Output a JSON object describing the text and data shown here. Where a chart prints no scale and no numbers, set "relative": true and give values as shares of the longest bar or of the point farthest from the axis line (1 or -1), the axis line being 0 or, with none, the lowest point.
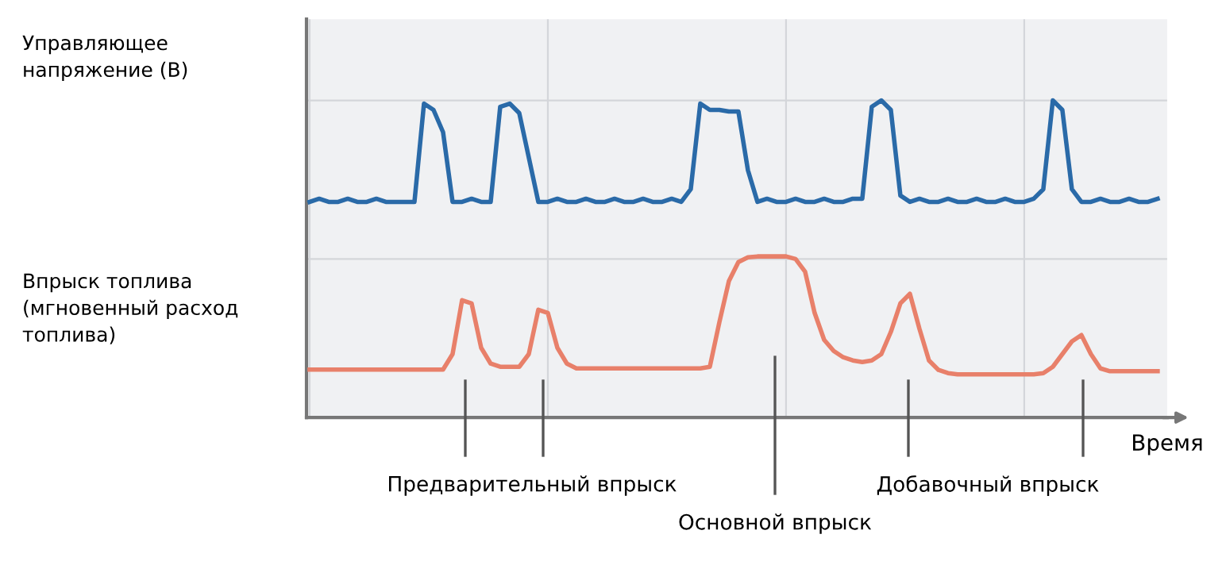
{
  "chart_data": {
    "type": "line",
    "relative": true,
    "grid": true,
    "tick_labels": false,
    "legend": false,
    "marker": "none",
    "line_style": "solid",
    "xlabel": "Время",
    "categories": [
      null,
      null,
      null,
      null,
      null,
      null,
      null,
      null,
      null,
      null,
      null,
      null,
      null,
      null,
      null,
      null,
      null,
      null,
      null,
      null,
      null,
      null,
      null,
      null,
      null,
      null,
      null,
      null,
      null,
      null,
      null,
      null,
      null,
      null,
      null,
      null,
      null,
      null,
      null,
      null,
      null,
      null,
      null,
      null,
      null,
      null,
      null,
      null,
      null,
      null,
      null,
      null,
      null,
      null,
      null,
      null,
      null,
      null,
      null,
      null,
      null,
      null,
      null,
      null,
      null,
      null,
      null,
      null,
      null,
      null,
      null,
      null,
      null,
      null,
      null,
      null,
      null,
      null,
      null,
      null,
      null,
      null,
      null,
      null,
      null,
      null,
      null,
      null,
      null,
      null
    ],
    "series": [
      {
        "color": "#2a6aa8",
        "values": [
          0.68,
          0.69,
          0.68,
          0.68,
          0.69,
          0.68,
          0.68,
          0.69,
          0.68,
          0.68,
          0.68,
          0.68,
          0.99,
          0.97,
          0.9,
          0.68,
          0.68,
          0.69,
          0.68,
          0.68,
          0.98,
          0.99,
          0.96,
          0.82,
          0.68,
          0.68,
          0.69,
          0.68,
          0.68,
          0.69,
          0.68,
          0.68,
          0.69,
          0.68,
          0.68,
          0.69,
          0.68,
          0.68,
          0.69,
          0.68,
          0.72,
          0.99,
          0.97,
          0.97,
          0.965,
          0.965,
          0.78,
          0.68,
          0.69,
          0.68,
          0.68,
          0.69,
          0.68,
          0.68,
          0.69,
          0.68,
          0.68,
          0.69,
          0.69,
          0.98,
          1.0,
          0.97,
          0.7,
          0.68,
          0.69,
          0.68,
          0.68,
          0.69,
          0.68,
          0.68,
          0.69,
          0.68,
          0.68,
          0.69,
          0.68,
          0.68,
          0.69,
          0.72,
          1.0,
          0.97,
          0.72,
          0.68,
          0.68,
          0.69,
          0.68,
          0.68,
          0.69,
          0.68,
          0.68,
          0.69
        ]
      },
      {
        "color": "#e8806a",
        "values": [
          0.151,
          0.151,
          0.151,
          0.151,
          0.151,
          0.151,
          0.151,
          0.151,
          0.151,
          0.151,
          0.151,
          0.151,
          0.151,
          0.151,
          0.151,
          0.2,
          0.37,
          0.36,
          0.22,
          0.17,
          0.16,
          0.16,
          0.16,
          0.2,
          0.34,
          0.33,
          0.22,
          0.17,
          0.155,
          0.155,
          0.155,
          0.155,
          0.155,
          0.155,
          0.155,
          0.155,
          0.155,
          0.155,
          0.155,
          0.155,
          0.155,
          0.155,
          0.16,
          0.3,
          0.43,
          0.49,
          0.505,
          0.508,
          0.508,
          0.508,
          0.508,
          0.5,
          0.46,
          0.33,
          0.245,
          0.21,
          0.19,
          0.18,
          0.175,
          0.18,
          0.2,
          0.27,
          0.36,
          0.39,
          0.28,
          0.18,
          0.15,
          0.14,
          0.136,
          0.136,
          0.136,
          0.136,
          0.136,
          0.136,
          0.136,
          0.136,
          0.136,
          0.14,
          0.16,
          0.2,
          0.24,
          0.26,
          0.2,
          0.155,
          0.146,
          0.146,
          0.146,
          0.146,
          0.146,
          0.146
        ]
      }
    ],
    "annotations": [
      "Управляющее напряжение (В)",
      "Впрыск топлива (мгновенный расход топлива)",
      "Предварительный впрыск",
      "Основной впрыск",
      "Добавочный впрыск"
    ]
  }
}
